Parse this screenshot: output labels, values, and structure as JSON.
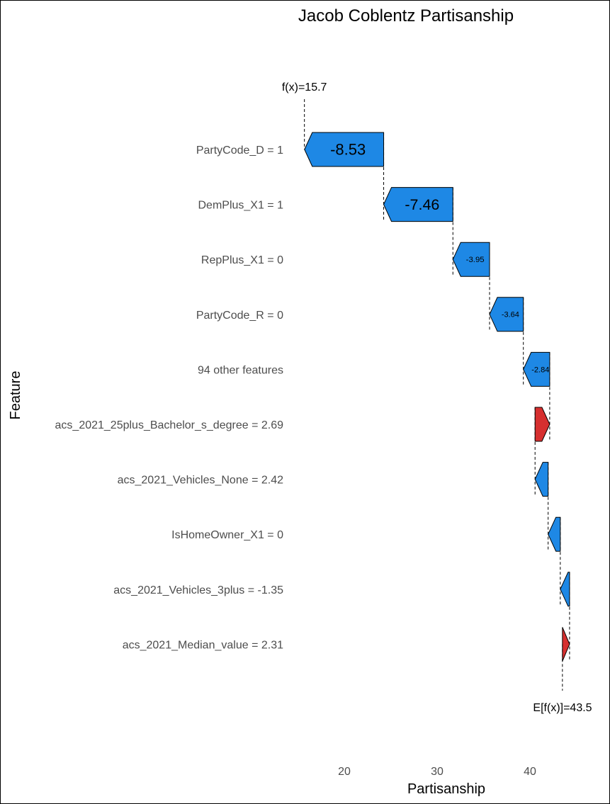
{
  "chart_data": {
    "type": "waterfall",
    "title": "Jacob Coblentz Partisanship",
    "xlabel": "Partisanship",
    "ylabel": "Feature",
    "xlim": [
      14,
      45
    ],
    "xticks": [
      20,
      30,
      40
    ],
    "fx_label": "f(x)=15.7",
    "fx": 15.7,
    "efx_label": "E[f(x)]=43.5",
    "efx": 43.5,
    "colors": {
      "positive": "#d62f2f",
      "negative": "#1e88e5"
    },
    "features": [
      {
        "label": "PartyCode_D = 1",
        "contribution": -8.53,
        "value_label": "-8.53"
      },
      {
        "label": "DemPlus_X1 = 1",
        "contribution": -7.46,
        "value_label": "-7.46"
      },
      {
        "label": "RepPlus_X1 = 0",
        "contribution": -3.95,
        "value_label": "-3.95"
      },
      {
        "label": "PartyCode_R = 0",
        "contribution": -3.64,
        "value_label": "-3.64"
      },
      {
        "label": "94 other features",
        "contribution": -2.84,
        "value_label": "-2.84"
      },
      {
        "label": "acs_2021_25plus_Bachelor_s_degree = 2.69",
        "contribution": 1.58,
        "value_label": ""
      },
      {
        "label": "acs_2021_Vehicles_None = 2.42",
        "contribution": -1.41,
        "value_label": ""
      },
      {
        "label": "IsHomeOwner_X1 = 0",
        "contribution": -1.31,
        "value_label": ""
      },
      {
        "label": "acs_2021_Vehicles_3plus = -1.35",
        "contribution": -1.0,
        "value_label": ""
      },
      {
        "label": "acs_2021_Median_value = 2.31",
        "contribution": 0.77,
        "value_label": ""
      }
    ]
  }
}
